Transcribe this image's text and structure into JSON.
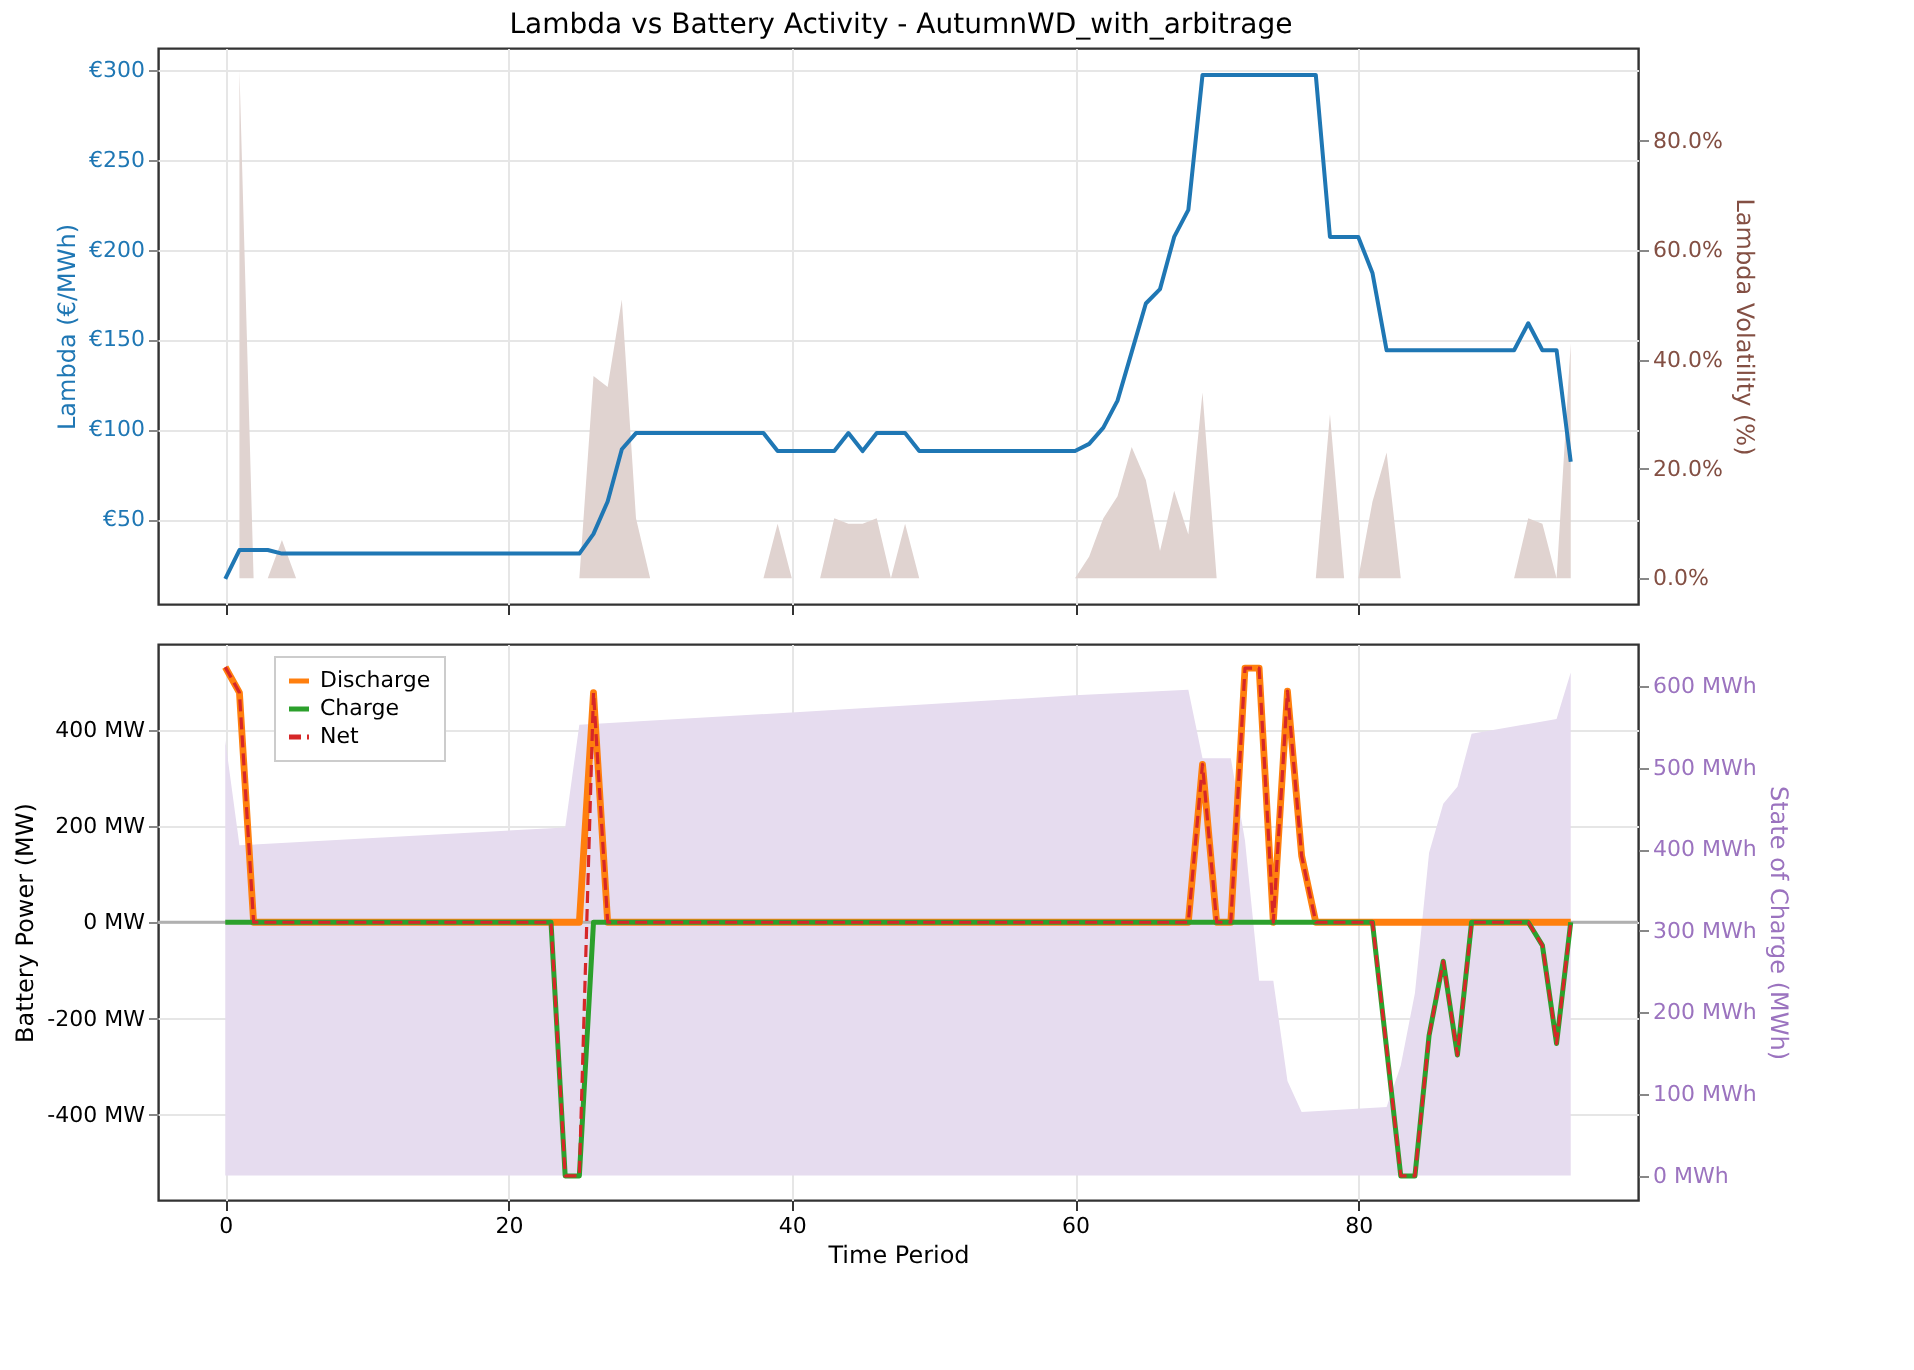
{
  "chart_data": [
    {
      "type": "line",
      "title": "Lambda vs Battery Activity - AutumnWD_with_arbitrage",
      "ylabel": "Lambda (€/MWh)",
      "y2label": "Lambda Volatility (%)",
      "x": [
        0,
        1,
        2,
        3,
        4,
        5,
        6,
        7,
        8,
        9,
        10,
        11,
        12,
        13,
        14,
        15,
        16,
        17,
        18,
        19,
        20,
        21,
        22,
        23,
        24,
        25,
        26,
        27,
        28,
        29,
        30,
        31,
        32,
        33,
        34,
        35,
        36,
        37,
        38,
        39,
        40,
        41,
        42,
        43,
        44,
        45,
        46,
        47,
        48,
        49,
        50,
        51,
        52,
        53,
        54,
        55,
        56,
        57,
        58,
        59,
        60,
        61,
        62,
        63,
        64,
        65,
        66,
        67,
        68,
        69,
        70,
        71,
        72,
        73,
        74,
        75,
        76,
        77,
        78,
        79,
        80,
        81,
        82,
        83,
        84,
        85,
        86,
        87,
        88,
        89,
        90,
        91,
        92,
        93,
        94,
        95
      ],
      "xlim": [
        -4.75,
        99.75
      ],
      "xticks": [
        0,
        20,
        40,
        60,
        80
      ],
      "ylim": [
        3,
        312
      ],
      "yticks": [
        {
          "value": 50,
          "label": "€50"
        },
        {
          "value": 100,
          "label": "€100"
        },
        {
          "value": 150,
          "label": "€150"
        },
        {
          "value": 200,
          "label": "€200"
        },
        {
          "value": 250,
          "label": "€250"
        },
        {
          "value": 300,
          "label": "€300"
        }
      ],
      "y2lim": [
        -4.7,
        97
      ],
      "y2ticks": [
        {
          "value": 0,
          "label": "0.0%"
        },
        {
          "value": 20,
          "label": "20.0%"
        },
        {
          "value": 40,
          "label": "40.0%"
        },
        {
          "value": 60,
          "label": "60.0%"
        },
        {
          "value": 80,
          "label": "80.0%"
        }
      ],
      "grid": true,
      "tick_labels": "y",
      "legend": false,
      "series": [
        {
          "type": "area",
          "axis": "y2",
          "color": "#e0d3d0",
          "values": [
            null,
            93,
            0,
            0,
            7,
            0,
            0,
            0,
            0,
            0,
            0,
            0,
            0,
            0,
            0,
            0,
            0,
            0,
            0,
            0,
            0,
            0,
            0,
            0,
            0,
            0,
            37,
            35,
            51,
            11,
            0,
            0,
            0,
            0,
            0,
            0,
            0,
            0,
            0,
            10,
            0,
            0,
            0,
            11,
            10,
            10,
            11,
            0,
            10,
            0,
            0,
            0,
            0,
            0,
            0,
            0,
            0,
            0,
            0,
            0,
            0,
            4,
            11,
            15,
            24,
            18,
            5,
            16,
            8,
            34,
            0,
            0,
            0,
            0,
            0,
            0,
            0,
            0,
            30,
            0,
            0,
            14,
            23,
            0,
            0,
            0,
            0,
            0,
            0,
            0,
            0,
            0,
            11,
            10,
            0,
            43
          ]
        },
        {
          "color": "#1f77b4",
          "values": [
            17,
            33,
            33,
            33,
            31,
            31,
            31,
            31,
            31,
            31,
            31,
            31,
            31,
            31,
            31,
            31,
            31,
            31,
            31,
            31,
            31,
            31,
            31,
            31,
            31,
            31,
            42,
            60,
            89,
            98,
            98,
            98,
            98,
            98,
            98,
            98,
            98,
            98,
            98,
            88,
            88,
            88,
            88,
            88,
            98,
            88,
            98,
            98,
            98,
            88,
            88,
            88,
            88,
            88,
            88,
            88,
            88,
            88,
            88,
            88,
            88,
            92,
            101,
            116,
            143,
            170,
            178,
            207,
            222,
            297,
            297,
            297,
            297,
            297,
            297,
            297,
            297,
            297,
            207,
            207,
            207,
            187,
            144,
            144,
            144,
            144,
            144,
            144,
            144,
            144,
            144,
            144,
            159,
            144,
            144,
            82
          ]
        }
      ]
    },
    {
      "type": "line",
      "xlabel": "Time Period",
      "ylabel": "Battery Power (MW)",
      "y2label": "State of Charge (MWh)",
      "x": [
        0,
        1,
        2,
        3,
        4,
        5,
        6,
        7,
        8,
        9,
        10,
        11,
        12,
        13,
        14,
        15,
        16,
        17,
        18,
        19,
        20,
        21,
        22,
        23,
        24,
        25,
        26,
        27,
        28,
        29,
        30,
        31,
        32,
        33,
        34,
        35,
        36,
        37,
        38,
        39,
        40,
        41,
        42,
        43,
        44,
        45,
        46,
        47,
        48,
        49,
        50,
        51,
        52,
        53,
        54,
        55,
        56,
        57,
        58,
        59,
        60,
        61,
        62,
        63,
        64,
        65,
        66,
        67,
        68,
        69,
        70,
        71,
        72,
        73,
        74,
        75,
        76,
        77,
        78,
        79,
        80,
        81,
        82,
        83,
        84,
        85,
        86,
        87,
        88,
        89,
        90,
        91,
        92,
        93,
        94,
        95
      ],
      "xlim": [
        -4.75,
        99.75
      ],
      "xticks": [
        0,
        20,
        40,
        60,
        80
      ],
      "ylim": [
        -577,
        578
      ],
      "yticks": [
        {
          "value": -400,
          "label": "-400 MW"
        },
        {
          "value": -200,
          "label": "-200 MW"
        },
        {
          "value": 0,
          "label": "0 MW"
        },
        {
          "value": 200,
          "label": "200 MW"
        },
        {
          "value": 400,
          "label": "400 MW"
        }
      ],
      "y2lim": [
        -30,
        652
      ],
      "y2ticks": [
        {
          "value": 0,
          "label": "0 MWh"
        },
        {
          "value": 100,
          "label": "100 MWh"
        },
        {
          "value": 200,
          "label": "200 MWh"
        },
        {
          "value": 300,
          "label": "300 MWh"
        },
        {
          "value": 400,
          "label": "400 MWh"
        },
        {
          "value": 500,
          "label": "500 MWh"
        },
        {
          "value": 600,
          "label": "600 MWh"
        }
      ],
      "grid": true,
      "legend": "top left",
      "ref_lines": [
        {
          "axis": "y",
          "value": 0,
          "color": "#b0b0b0"
        }
      ],
      "series": [
        {
          "type": "area",
          "axis": "y2",
          "color": "#e6dcef",
          "x": [
            0,
            1,
            24,
            25,
            40,
            60,
            68,
            69,
            70,
            71,
            72,
            73,
            74,
            75,
            76,
            82,
            83,
            84,
            85,
            86,
            87,
            88,
            94,
            95
          ],
          "values": [
            534,
            405,
            427,
            553,
            568,
            589,
            596,
            512,
            512,
            512,
            411,
            239,
            239,
            116,
            78,
            84,
            135,
            224,
            396,
            456,
            477,
            542,
            560,
            617
          ]
        },
        {
          "name": "Discharge",
          "color": "#ff7f0e",
          "line_style": "solid",
          "values": [
            530,
            477,
            0,
            0,
            0,
            0,
            0,
            0,
            0,
            0,
            0,
            0,
            0,
            0,
            0,
            0,
            0,
            0,
            0,
            0,
            0,
            0,
            0,
            0,
            0,
            0,
            477,
            0,
            0,
            0,
            0,
            0,
            0,
            0,
            0,
            0,
            0,
            0,
            0,
            0,
            0,
            0,
            0,
            0,
            0,
            0,
            0,
            0,
            0,
            0,
            0,
            0,
            0,
            0,
            0,
            0,
            0,
            0,
            0,
            0,
            0,
            0,
            0,
            0,
            0,
            0,
            0,
            0,
            0,
            328,
            0,
            0,
            528,
            528,
            0,
            480,
            138,
            0,
            0,
            0,
            0,
            0,
            0,
            0,
            0,
            0,
            0,
            0,
            0,
            0,
            0,
            0,
            0,
            0,
            0,
            0
          ]
        },
        {
          "name": "Charge",
          "color": "#2ca02c",
          "line_style": "solid",
          "values": [
            0,
            0,
            0,
            0,
            0,
            0,
            0,
            0,
            0,
            0,
            0,
            0,
            0,
            0,
            0,
            0,
            0,
            0,
            0,
            0,
            0,
            0,
            0,
            0,
            -527,
            -527,
            0,
            0,
            0,
            0,
            0,
            0,
            0,
            0,
            0,
            0,
            0,
            0,
            0,
            0,
            0,
            0,
            0,
            0,
            0,
            0,
            0,
            0,
            0,
            0,
            0,
            0,
            0,
            0,
            0,
            0,
            0,
            0,
            0,
            0,
            0,
            0,
            0,
            0,
            0,
            0,
            0,
            0,
            0,
            0,
            0,
            0,
            0,
            0,
            0,
            0,
            0,
            0,
            0,
            0,
            0,
            0,
            -263,
            -527,
            -527,
            -235,
            -81,
            -276,
            0,
            0,
            0,
            0,
            0,
            -48,
            -252,
            0
          ]
        },
        {
          "name": "Net",
          "color": "#d62728",
          "line_style": "dashed",
          "values": [
            530,
            477,
            0,
            0,
            0,
            0,
            0,
            0,
            0,
            0,
            0,
            0,
            0,
            0,
            0,
            0,
            0,
            0,
            0,
            0,
            0,
            0,
            0,
            0,
            -527,
            -527,
            477,
            0,
            0,
            0,
            0,
            0,
            0,
            0,
            0,
            0,
            0,
            0,
            0,
            0,
            0,
            0,
            0,
            0,
            0,
            0,
            0,
            0,
            0,
            0,
            0,
            0,
            0,
            0,
            0,
            0,
            0,
            0,
            0,
            0,
            0,
            0,
            0,
            0,
            0,
            0,
            0,
            0,
            0,
            328,
            0,
            0,
            528,
            528,
            0,
            480,
            138,
            0,
            0,
            0,
            0,
            0,
            -263,
            -527,
            -527,
            -235,
            -81,
            -276,
            0,
            0,
            0,
            0,
            0,
            -48,
            -252,
            0
          ]
        }
      ]
    }
  ]
}
